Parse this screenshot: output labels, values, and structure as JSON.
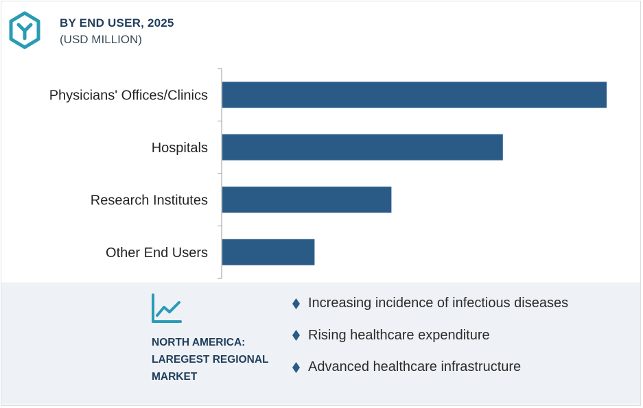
{
  "header": {
    "title": "BY END USER, 2025",
    "subtitle": "(USD MILLION)",
    "logo_icon": "hexagon-y-logo-icon"
  },
  "colors": {
    "bar": "#2a5b87",
    "accent": "#2a9bb5",
    "title": "#1f3d5b",
    "footer_bg": "#eef1f5"
  },
  "chart_data": {
    "type": "bar",
    "orientation": "horizontal",
    "title": "BY END USER, 2025",
    "subtitle": "(USD MILLION)",
    "categories": [
      "Physicians' Offices/Clinics",
      "Hospitals",
      "Research Institutes",
      "Other End Users"
    ],
    "values": [
      100,
      73,
      44,
      24
    ],
    "xlim": [
      0,
      100
    ],
    "value_axis_labeled": false,
    "grid": false,
    "legend": "none"
  },
  "footer": {
    "icon": "trend-chart-icon",
    "region_label": "NORTH AMERICA:\nLAREGEST REGIONAL\nMARKET",
    "bullet_icon": "diamond-bullet-icon",
    "bullets": [
      "Increasing incidence of infectious diseases",
      "Rising healthcare expenditure",
      "Advanced healthcare infrastructure"
    ]
  }
}
